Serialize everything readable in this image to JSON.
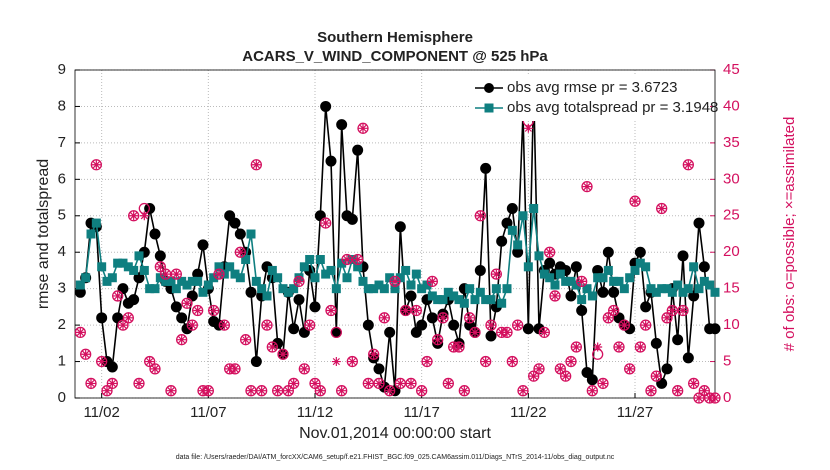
{
  "chart_data": {
    "type": "line",
    "title": "Southern Hemisphere",
    "subtitle": "ACARS_V_WIND_COMPONENT @ 525 hPa",
    "xlabel": "Nov.01,2014 00:00:00 start",
    "ylabel": "rmse and totalspread",
    "y2label": "# of obs: o=possible; ×=assimilated",
    "footnote": "data file: /Users/raeder/DAI/ATM_forcXX/CAM6_setup/f.e21.FHIST_BGC.f09_025.CAM6assim.011/Diags_NTrS_2014-11/obs_diag_output.nc",
    "xlim": [
      -0.25,
      29.75
    ],
    "xticks": [
      {
        "value": 1,
        "label": "11/02"
      },
      {
        "value": 6,
        "label": "11/07"
      },
      {
        "value": 11,
        "label": "11/12"
      },
      {
        "value": 16,
        "label": "11/17"
      },
      {
        "value": 21,
        "label": "11/22"
      },
      {
        "value": 26,
        "label": "11/27"
      }
    ],
    "ylim": [
      0,
      9
    ],
    "yticks": [
      0,
      1,
      2,
      3,
      4,
      5,
      6,
      7,
      8,
      9
    ],
    "y2lim": [
      0,
      45
    ],
    "y2ticks": [
      0,
      5,
      10,
      15,
      20,
      25,
      30,
      35,
      40,
      45
    ],
    "grid": true,
    "legend": "upper right",
    "x": [
      0,
      0.25,
      0.5,
      0.75,
      1,
      1.25,
      1.5,
      1.75,
      2,
      2.25,
      2.5,
      2.75,
      3,
      3.25,
      3.5,
      3.75,
      4,
      4.25,
      4.5,
      4.75,
      5,
      5.25,
      5.5,
      5.75,
      6,
      6.25,
      6.5,
      6.75,
      7,
      7.25,
      7.5,
      7.75,
      8,
      8.25,
      8.5,
      8.75,
      9,
      9.25,
      9.5,
      9.75,
      10,
      10.25,
      10.5,
      10.75,
      11,
      11.25,
      11.5,
      11.75,
      12,
      12.25,
      12.5,
      12.75,
      13,
      13.25,
      13.5,
      13.75,
      14,
      14.25,
      14.5,
      14.75,
      15,
      15.25,
      15.5,
      15.75,
      16,
      16.25,
      16.5,
      16.75,
      17,
      17.25,
      17.5,
      17.75,
      18,
      18.25,
      18.5,
      18.75,
      19,
      19.25,
      19.5,
      19.75,
      20,
      20.25,
      20.5,
      20.75,
      21,
      21.25,
      21.5,
      21.75,
      22,
      22.25,
      22.5,
      22.75,
      23,
      23.25,
      23.5,
      23.75,
      24,
      24.25,
      24.5,
      24.75,
      25,
      25.25,
      25.5,
      25.75,
      26,
      26.25,
      26.5,
      26.75,
      27,
      27.25,
      27.5,
      27.75,
      28,
      28.25,
      28.5,
      28.75,
      29,
      29.25,
      29.5,
      29.75
    ],
    "series": [
      {
        "name": "obs avg rmse pr = 3.6723",
        "color": "#000000",
        "marker": "circle",
        "line": true,
        "values": [
          2.9,
          3.3,
          4.8,
          4.7,
          2.2,
          1.0,
          0.85,
          2.2,
          3.0,
          2.6,
          2.7,
          3.3,
          4.0,
          5.2,
          4.5,
          3.9,
          3.2,
          3.0,
          2.5,
          2.2,
          1.9,
          2.8,
          3.4,
          4.2,
          3.0,
          2.1,
          2.0,
          3.6,
          5.0,
          4.8,
          4.5,
          4.0,
          2.9,
          1.0,
          2.8,
          3.6,
          3.3,
          1.5,
          1.2,
          2.9,
          1.9,
          2.7,
          1.8,
          3.5,
          2.5,
          5.0,
          8.0,
          6.5,
          1.8,
          7.5,
          5.0,
          4.9,
          6.8,
          3.6,
          2.0,
          1.1,
          0.8,
          0.3,
          1.8,
          0.2,
          4.7,
          2.4,
          2.8,
          1.8,
          2.0,
          2.7,
          2.2,
          1.5,
          2.3,
          2.7,
          2.0,
          1.5,
          3.0,
          2.0,
          1.8,
          3.5,
          6.3,
          1.7,
          2.5,
          4.3,
          4.8,
          5.2,
          4.0,
          7.8,
          1.9,
          8.5,
          1.9,
          3.5,
          3.7,
          3.4,
          3.6,
          3.5,
          2.8,
          3.6,
          2.4,
          0.7,
          0.5,
          3.5,
          2.9,
          4.0,
          2.9,
          2.2,
          2.0,
          1.9,
          3.7,
          4.0,
          2.5,
          2.9,
          1.5,
          0.4,
          0.8,
          3.0,
          1.6,
          3.9,
          1.1,
          2.8,
          4.8,
          3.6,
          1.9,
          1.9
        ]
      },
      {
        "name": "obs avg totalspread pr = 3.1948",
        "color": "#0f7f80",
        "marker": "square",
        "line": true,
        "values": [
          3.1,
          3.3,
          4.5,
          4.8,
          3.6,
          3.2,
          3.3,
          3.7,
          3.7,
          3.6,
          3.5,
          3.9,
          3.5,
          3.0,
          3.0,
          3.3,
          3.2,
          3.2,
          3.0,
          3.2,
          3.1,
          3.2,
          3.2,
          2.9,
          3.1,
          3.3,
          3.6,
          3.4,
          3.6,
          3.4,
          3.3,
          3.8,
          4.5,
          3.2,
          3.0,
          2.8,
          3.5,
          3.3,
          3.0,
          2.9,
          3.0,
          3.3,
          3.6,
          3.8,
          3.3,
          3.8,
          3.4,
          3.5,
          3.0,
          3.7,
          3.3,
          3.8,
          3.6,
          3.2,
          3.0,
          3.0,
          3.1,
          3.0,
          3.3,
          3.0,
          3.3,
          3.5,
          3.1,
          3.4,
          3.0,
          3.1,
          2.8,
          2.7,
          2.7,
          2.9,
          2.8,
          2.7,
          2.6,
          3.0,
          2.7,
          2.9,
          2.7,
          2.7,
          3.0,
          2.6,
          3.0,
          4.6,
          4.2,
          5.0,
          3.6,
          5.2,
          3.9,
          3.4,
          3.3,
          3.1,
          3.4,
          3.2,
          3.2,
          3.1,
          2.7,
          3.0,
          2.8,
          3.3,
          3.3,
          3.5,
          3.2,
          3.2,
          3.0,
          3.3,
          3.5,
          3.7,
          3.6,
          3.0,
          2.9,
          3.0,
          3.0,
          2.9,
          3.1,
          2.9,
          3.0,
          3.6,
          3.0,
          3.2,
          3.1,
          2.9
        ]
      },
      {
        "color": "#d4105f",
        "marker": "ring",
        "axis": "y2",
        "values": [
          9,
          6,
          2,
          32,
          5,
          1,
          2,
          14,
          10,
          11,
          25,
          2,
          26,
          5,
          4,
          18,
          17,
          1,
          17,
          8,
          13,
          10,
          12,
          1,
          1,
          12,
          17,
          10,
          4,
          4,
          20,
          8,
          1,
          32,
          1,
          10,
          7,
          1,
          6,
          1,
          2,
          16,
          4,
          10,
          2,
          1,
          24,
          12,
          9,
          1,
          19,
          5,
          19,
          37,
          2,
          6,
          2,
          11,
          1,
          16,
          2,
          12,
          2,
          12,
          1,
          5,
          16,
          8,
          11,
          2,
          7,
          7,
          1,
          11,
          9,
          25,
          5,
          10,
          17,
          9,
          9,
          5,
          10,
          1,
          38,
          3,
          4,
          9,
          20,
          14,
          4,
          3,
          5,
          7,
          16,
          29,
          1,
          6,
          2,
          11,
          12,
          7,
          10,
          4,
          27,
          7,
          10,
          1,
          3,
          26,
          11,
          12,
          1,
          12,
          32,
          2,
          0,
          1,
          0,
          0
        ]
      },
      {
        "color": "#d4105f",
        "marker": "asterisk",
        "axis": "y2",
        "values": [
          9,
          6,
          2,
          32,
          5,
          1,
          2,
          14,
          10,
          11,
          25,
          2,
          25,
          5,
          4,
          18,
          17,
          1,
          17,
          8,
          13,
          10,
          12,
          1,
          1,
          12,
          17,
          10,
          4,
          4,
          20,
          8,
          1,
          32,
          1,
          10,
          7,
          1,
          6,
          1,
          2,
          16,
          4,
          10,
          2,
          1,
          24,
          12,
          5,
          1,
          19,
          5,
          19,
          37,
          2,
          6,
          2,
          11,
          1,
          16,
          2,
          12,
          2,
          12,
          1,
          5,
          16,
          8,
          11,
          2,
          7,
          7,
          1,
          11,
          9,
          25,
          5,
          10,
          17,
          9,
          9,
          5,
          10,
          1,
          37,
          3,
          4,
          9,
          20,
          14,
          4,
          3,
          5,
          7,
          16,
          29,
          1,
          7,
          2,
          11,
          12,
          7,
          10,
          4,
          27,
          7,
          10,
          1,
          3,
          26,
          11,
          12,
          1,
          12,
          32,
          2,
          0,
          1,
          0,
          0
        ]
      }
    ]
  }
}
